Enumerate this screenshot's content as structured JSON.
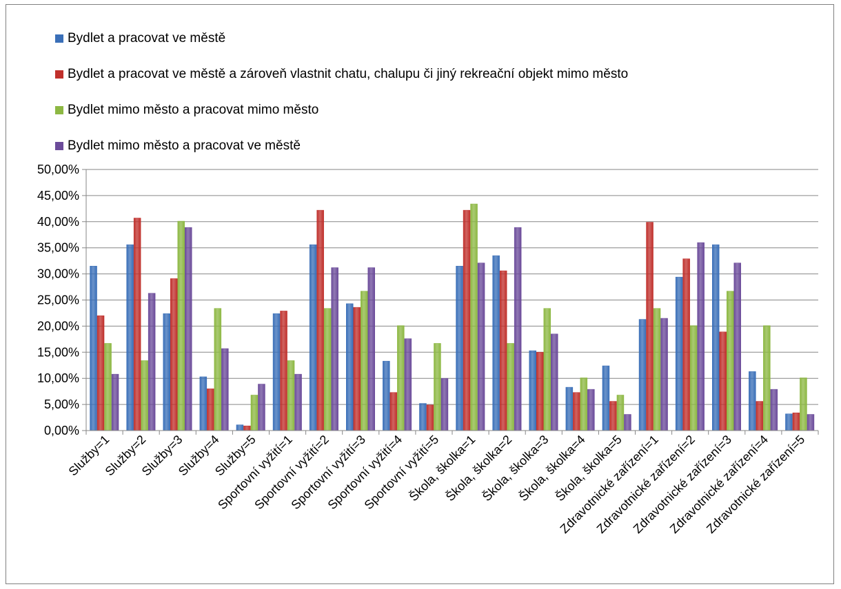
{
  "chart_data": {
    "type": "bar",
    "title": "",
    "xlabel": "",
    "ylabel": "",
    "ylim": [
      0,
      50
    ],
    "y_ticks": [
      "0,00%",
      "5,00%",
      "10,00%",
      "15,00%",
      "20,00%",
      "25,00%",
      "30,00%",
      "35,00%",
      "40,00%",
      "45,00%",
      "50,00%"
    ],
    "grid": true,
    "legend_position": "top-left",
    "categories": [
      "Služby=1",
      "Služby=2",
      "Služby=3",
      "Služby=4",
      "Služby=5",
      "Sportovní vyžití=1",
      "Sportovní vyžití=2",
      "Sportovní vyžití=3",
      "Sportovní vyžití=4",
      "Sportovní vyžití=5",
      "Škola, školka=1",
      "Škola, školka=2",
      "Škola, školka=3",
      "Škola, školka=4",
      "Škola, školka=5",
      "Zdravotnické zařízení=1",
      "Zdravotnické zařízení=2",
      "Zdravotnické zařízení=3",
      "Zdravotnické zařízení=4",
      "Zdravotnické zařízení=5"
    ],
    "series": [
      {
        "name": "Bydlet a pracovat ve městě",
        "color": "#3a6fb8",
        "values": [
          31.5,
          35.6,
          22.4,
          10.3,
          1.1,
          22.4,
          35.6,
          24.3,
          13.3,
          5.2,
          31.5,
          33.5,
          15.3,
          8.3,
          12.4,
          21.3,
          29.4,
          35.6,
          11.3,
          3.2
        ]
      },
      {
        "name": "Bydlet a pracovat ve městě a zároveň vlastnit chatu, chalupu či jiný rekreační objekt mimo město",
        "color": "#c0302c",
        "values": [
          22.0,
          40.7,
          29.1,
          8.0,
          0.9,
          22.9,
          42.2,
          23.6,
          7.3,
          4.9,
          42.2,
          30.6,
          15.0,
          7.3,
          5.6,
          39.9,
          32.9,
          18.9,
          5.6,
          3.4
        ]
      },
      {
        "name": "Bydlet mimo město a pracovat mimo město",
        "color": "#8db843",
        "values": [
          16.7,
          13.4,
          40.1,
          23.4,
          6.8,
          13.4,
          23.4,
          26.7,
          20.1,
          16.7,
          43.4,
          16.7,
          23.4,
          10.1,
          6.8,
          23.4,
          20.1,
          26.7,
          20.1,
          10.1
        ]
      },
      {
        "name": "Bydlet mimo město a pracovat ve městě",
        "color": "#6b4b9a",
        "values": [
          10.8,
          26.3,
          38.9,
          15.7,
          8.9,
          10.8,
          31.2,
          31.2,
          17.6,
          10.0,
          32.1,
          38.9,
          18.5,
          7.9,
          3.1,
          21.5,
          36.0,
          32.1,
          7.9,
          3.1
        ]
      }
    ]
  }
}
